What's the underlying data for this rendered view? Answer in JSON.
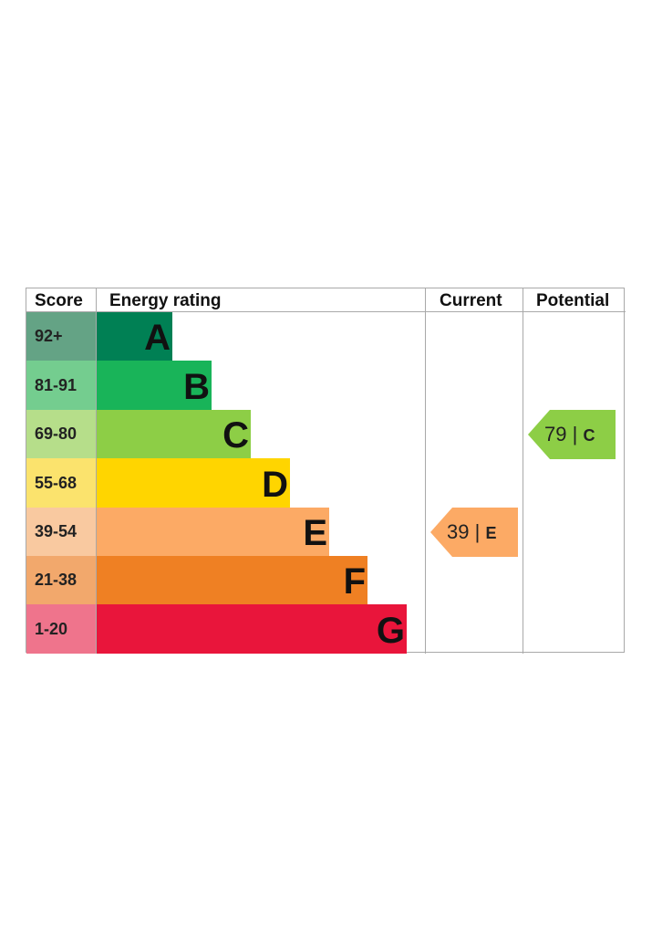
{
  "headers": {
    "score": "Score",
    "energy_rating": "Energy rating",
    "current": "Current",
    "potential": "Potential"
  },
  "bands": [
    {
      "score": "92+",
      "letter": "A",
      "bar_color": "#008054",
      "score_color": "#64a385"
    },
    {
      "score": "81-91",
      "letter": "B",
      "bar_color": "#19b459",
      "score_color": "#74cd8f"
    },
    {
      "score": "69-80",
      "letter": "C",
      "bar_color": "#8dce46",
      "score_color": "#b6de8a"
    },
    {
      "score": "55-68",
      "letter": "D",
      "bar_color": "#ffd500",
      "score_color": "#fbe36d"
    },
    {
      "score": "39-54",
      "letter": "E",
      "bar_color": "#fcaa65",
      "score_color": "#f9c9a0"
    },
    {
      "score": "21-38",
      "letter": "F",
      "bar_color": "#ef8023",
      "score_color": "#f2a86c"
    },
    {
      "score": "1-20",
      "letter": "G",
      "bar_color": "#e9153b",
      "score_color": "#ef748c"
    }
  ],
  "current": {
    "value": "39",
    "separator": "|",
    "letter": "E",
    "color": "#fcaa65"
  },
  "potential": {
    "value": "79",
    "separator": "|",
    "letter": "C",
    "color": "#8dce46"
  },
  "chart_data": {
    "type": "bar",
    "categories": [
      "A",
      "B",
      "C",
      "D",
      "E",
      "F",
      "G"
    ],
    "score_ranges": [
      "92+",
      "81-91",
      "69-80",
      "55-68",
      "39-54",
      "21-38",
      "1-20"
    ],
    "current_rating": {
      "score": 39,
      "band": "E"
    },
    "potential_rating": {
      "score": 79,
      "band": "C"
    }
  }
}
